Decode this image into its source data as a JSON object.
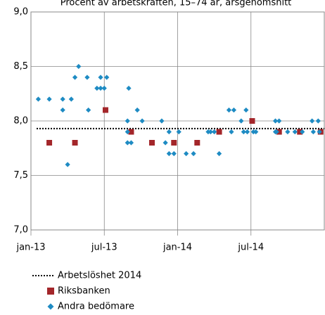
{
  "chart_data": {
    "type": "scatter",
    "title": "Procent av arbetskraften, 15–74 år, årsgenomsnitt",
    "xlim": [
      0,
      24
    ],
    "xticks": [
      {
        "value": 0,
        "label": "jan-13"
      },
      {
        "value": 6,
        "label": "jul-13"
      },
      {
        "value": 12,
        "label": "jan-14"
      },
      {
        "value": 18,
        "label": "jul-14"
      }
    ],
    "ylim": [
      7,
      9
    ],
    "yticks": [
      {
        "value": 7,
        "label": "7,0"
      },
      {
        "value": 7.5,
        "label": "7,5"
      },
      {
        "value": 8,
        "label": "8,0"
      },
      {
        "value": 8.5,
        "label": "8,5"
      },
      {
        "value": 9,
        "label": "9,0"
      }
    ],
    "grid": true,
    "reference_line": {
      "name": "Arbetslöshet 2014",
      "value": 7.93,
      "color": "#000000"
    },
    "series": [
      {
        "name": "Riksbanken",
        "color": "#a3262a",
        "marker": "square",
        "x": [
          1.5,
          3.6,
          6.1,
          8.2,
          9.9,
          11.7,
          13.6,
          15.4,
          18.1,
          20.3,
          22.0,
          23.7
        ],
        "values": [
          7.8,
          7.8,
          8.1,
          7.9,
          7.8,
          7.8,
          7.8,
          7.9,
          8.0,
          7.9,
          7.9,
          7.9
        ]
      },
      {
        "name": "Andra bedömare",
        "color": "#1e8bc3",
        "marker": "diamond",
        "x": [
          0.6,
          1.5,
          2.6,
          2.6,
          3.0,
          3.3,
          3.6,
          3.9,
          4.6,
          4.7,
          5.4,
          5.7,
          5.7,
          6.0,
          6.2,
          8.0,
          7.9,
          7.9,
          7.9,
          8.2,
          8.7,
          9.1,
          10.7,
          11.0,
          11.3,
          11.3,
          11.7,
          12.1,
          12.7,
          13.3,
          14.5,
          14.7,
          15.0,
          15.4,
          16.2,
          16.6,
          16.4,
          17.2,
          17.4,
          17.6,
          17.7,
          18.2,
          18.4,
          20.0,
          20.0,
          20.3,
          20.1,
          21.0,
          21.6,
          22.2,
          23.0,
          23.1,
          23.5,
          23.6
        ],
        "values": [
          8.2,
          8.2,
          8.1,
          8.2,
          7.6,
          8.2,
          8.4,
          8.5,
          8.4,
          8.1,
          8.3,
          8.4,
          8.3,
          8.3,
          8.4,
          8.3,
          8.0,
          7.9,
          7.8,
          7.8,
          8.1,
          8.0,
          8.0,
          7.8,
          7.7,
          7.9,
          7.7,
          7.9,
          7.7,
          7.7,
          7.9,
          7.9,
          7.9,
          7.7,
          8.1,
          8.1,
          7.9,
          8.0,
          7.9,
          8.1,
          7.9,
          7.9,
          7.9,
          7.9,
          8.0,
          8.0,
          7.9,
          7.9,
          7.9,
          7.9,
          8.0,
          7.9,
          8.0,
          7.9
        ]
      }
    ]
  }
}
